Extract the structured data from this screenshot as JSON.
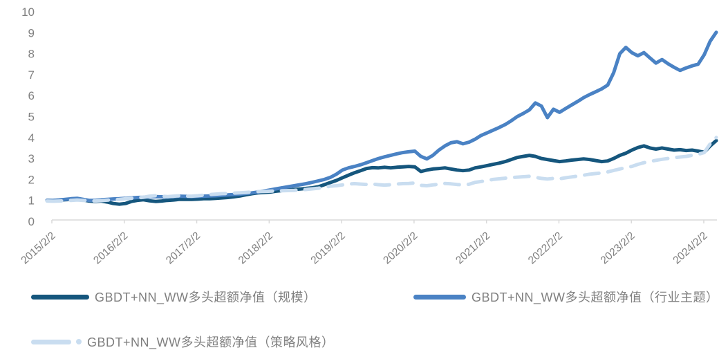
{
  "chart_data": {
    "type": "line",
    "title": "",
    "xlabel": "",
    "ylabel": "",
    "ylim": [
      0,
      10
    ],
    "yticks": [
      0,
      1,
      2,
      3,
      4,
      5,
      6,
      7,
      8,
      9,
      10
    ],
    "grid": false,
    "legend_position": "bottom",
    "axis_color": "#d9d9d9",
    "tick_text_color": "#808080",
    "legend_text_color": "#7f7f7f",
    "xtick_labels": [
      "2015/2/2",
      "2016/2/2",
      "2017/2/2",
      "2018/2/2",
      "2019/2/2",
      "2020/2/2",
      "2021/2/2",
      "2022/2/2",
      "2023/2/2",
      "2024/2/2"
    ],
    "x_monthly": [
      "2015/1",
      "2015/2",
      "2015/3",
      "2015/4",
      "2015/5",
      "2015/6",
      "2015/7",
      "2015/8",
      "2015/9",
      "2015/10",
      "2015/11",
      "2015/12",
      "2016/1",
      "2016/2",
      "2016/3",
      "2016/4",
      "2016/5",
      "2016/6",
      "2016/7",
      "2016/8",
      "2016/9",
      "2016/10",
      "2016/11",
      "2016/12",
      "2017/1",
      "2017/2",
      "2017/3",
      "2017/4",
      "2017/5",
      "2017/6",
      "2017/7",
      "2017/8",
      "2017/9",
      "2017/10",
      "2017/11",
      "2017/12",
      "2018/1",
      "2018/2",
      "2018/3",
      "2018/4",
      "2018/5",
      "2018/6",
      "2018/7",
      "2018/8",
      "2018/9",
      "2018/10",
      "2018/11",
      "2018/12",
      "2019/1",
      "2019/2",
      "2019/3",
      "2019/4",
      "2019/5",
      "2019/6",
      "2019/7",
      "2019/8",
      "2019/9",
      "2019/10",
      "2019/11",
      "2019/12",
      "2020/1",
      "2020/2",
      "2020/3",
      "2020/4",
      "2020/5",
      "2020/6",
      "2020/7",
      "2020/8",
      "2020/9",
      "2020/10",
      "2020/11",
      "2020/12",
      "2021/1",
      "2021/2",
      "2021/3",
      "2021/4",
      "2021/5",
      "2021/6",
      "2021/7",
      "2021/8",
      "2021/9",
      "2021/10",
      "2021/11",
      "2021/12",
      "2022/1",
      "2022/2",
      "2022/3",
      "2022/4",
      "2022/5",
      "2022/6",
      "2022/7",
      "2022/8",
      "2022/9",
      "2022/10",
      "2022/11",
      "2022/12",
      "2023/1",
      "2023/2",
      "2023/3",
      "2023/4",
      "2023/5",
      "2023/6",
      "2023/7",
      "2023/8",
      "2023/9",
      "2023/10",
      "2023/11",
      "2023/12",
      "2024/1",
      "2024/2",
      "2024/3",
      "2024/4"
    ],
    "series": [
      {
        "name": "GBDT+NN_WW多头超额净值（规模）",
        "color": "#15567d",
        "style": "solid",
        "values": [
          1.0,
          0.99,
          1.01,
          1.03,
          1.05,
          1.06,
          1.02,
          0.97,
          0.95,
          0.97,
          0.92,
          0.85,
          0.82,
          0.85,
          0.95,
          1.0,
          1.03,
          0.98,
          0.95,
          0.97,
          1.0,
          1.02,
          1.05,
          1.05,
          1.05,
          1.06,
          1.08,
          1.08,
          1.1,
          1.12,
          1.14,
          1.17,
          1.21,
          1.27,
          1.32,
          1.36,
          1.38,
          1.4,
          1.44,
          1.47,
          1.5,
          1.52,
          1.54,
          1.57,
          1.6,
          1.65,
          1.75,
          1.85,
          1.95,
          2.08,
          2.2,
          2.32,
          2.42,
          2.52,
          2.56,
          2.55,
          2.58,
          2.55,
          2.58,
          2.6,
          2.62,
          2.6,
          2.38,
          2.45,
          2.5,
          2.52,
          2.55,
          2.5,
          2.45,
          2.42,
          2.45,
          2.55,
          2.6,
          2.66,
          2.72,
          2.78,
          2.85,
          2.95,
          3.05,
          3.1,
          3.15,
          3.1,
          3.0,
          2.95,
          2.9,
          2.85,
          2.88,
          2.92,
          2.95,
          2.98,
          2.95,
          2.9,
          2.85,
          2.88,
          3.0,
          3.15,
          3.25,
          3.4,
          3.52,
          3.6,
          3.5,
          3.45,
          3.5,
          3.45,
          3.4,
          3.42,
          3.38,
          3.4,
          3.35,
          3.3,
          3.6,
          3.85
        ]
      },
      {
        "name": "GBDT+NN_WW多头超额净值（行业主题）",
        "color": "#4a82c4",
        "style": "solid",
        "values": [
          1.0,
          1.0,
          1.02,
          1.05,
          1.08,
          1.1,
          1.05,
          1.0,
          1.0,
          1.03,
          1.05,
          1.07,
          1.08,
          1.1,
          1.12,
          1.14,
          1.15,
          1.17,
          1.18,
          1.17,
          1.16,
          1.18,
          1.2,
          1.19,
          1.18,
          1.19,
          1.2,
          1.21,
          1.22,
          1.24,
          1.26,
          1.28,
          1.3,
          1.33,
          1.36,
          1.4,
          1.45,
          1.5,
          1.55,
          1.6,
          1.65,
          1.7,
          1.75,
          1.8,
          1.86,
          1.93,
          2.0,
          2.1,
          2.25,
          2.45,
          2.55,
          2.62,
          2.7,
          2.8,
          2.9,
          3.0,
          3.08,
          3.15,
          3.22,
          3.28,
          3.32,
          3.35,
          3.1,
          2.98,
          3.15,
          3.4,
          3.6,
          3.75,
          3.8,
          3.7,
          3.78,
          3.92,
          4.1,
          4.22,
          4.35,
          4.48,
          4.62,
          4.8,
          5.0,
          5.15,
          5.32,
          5.65,
          5.5,
          4.95,
          5.35,
          5.2,
          5.38,
          5.55,
          5.72,
          5.9,
          6.05,
          6.18,
          6.32,
          6.5,
          7.1,
          8.0,
          8.3,
          8.05,
          7.9,
          8.05,
          7.8,
          7.55,
          7.72,
          7.52,
          7.35,
          7.2,
          7.32,
          7.42,
          7.5,
          7.95,
          8.6,
          9.02
        ]
      },
      {
        "name": "GBDT+NN_WW多头超额净值（策略风格）",
        "color": "#c9ddf0",
        "style": "dashed",
        "values": [
          0.97,
          0.96,
          0.97,
          0.98,
          1.0,
          1.02,
          1.0,
          0.98,
          0.97,
          0.99,
          1.01,
          1.03,
          1.05,
          1.08,
          1.1,
          1.12,
          1.15,
          1.2,
          1.22,
          1.2,
          1.18,
          1.2,
          1.22,
          1.2,
          1.2,
          1.22,
          1.25,
          1.28,
          1.3,
          1.32,
          1.33,
          1.35,
          1.36,
          1.38,
          1.4,
          1.42,
          1.43,
          1.44,
          1.45,
          1.46,
          1.47,
          1.48,
          1.5,
          1.52,
          1.55,
          1.58,
          1.62,
          1.68,
          1.7,
          1.74,
          1.78,
          1.8,
          1.78,
          1.76,
          1.78,
          1.75,
          1.73,
          1.75,
          1.78,
          1.8,
          1.81,
          1.83,
          1.72,
          1.7,
          1.74,
          1.77,
          1.81,
          1.79,
          1.76,
          1.74,
          1.77,
          1.86,
          1.9,
          1.95,
          2.0,
          2.03,
          2.06,
          2.09,
          2.11,
          2.13,
          2.15,
          2.1,
          2.05,
          2.02,
          2.05,
          2.03,
          2.08,
          2.12,
          2.16,
          2.2,
          2.25,
          2.28,
          2.31,
          2.36,
          2.43,
          2.5,
          2.56,
          2.62,
          2.72,
          2.8,
          2.86,
          2.91,
          2.96,
          3.0,
          3.04,
          3.07,
          3.1,
          3.15,
          3.2,
          3.28,
          3.7,
          4.0
        ]
      }
    ]
  }
}
